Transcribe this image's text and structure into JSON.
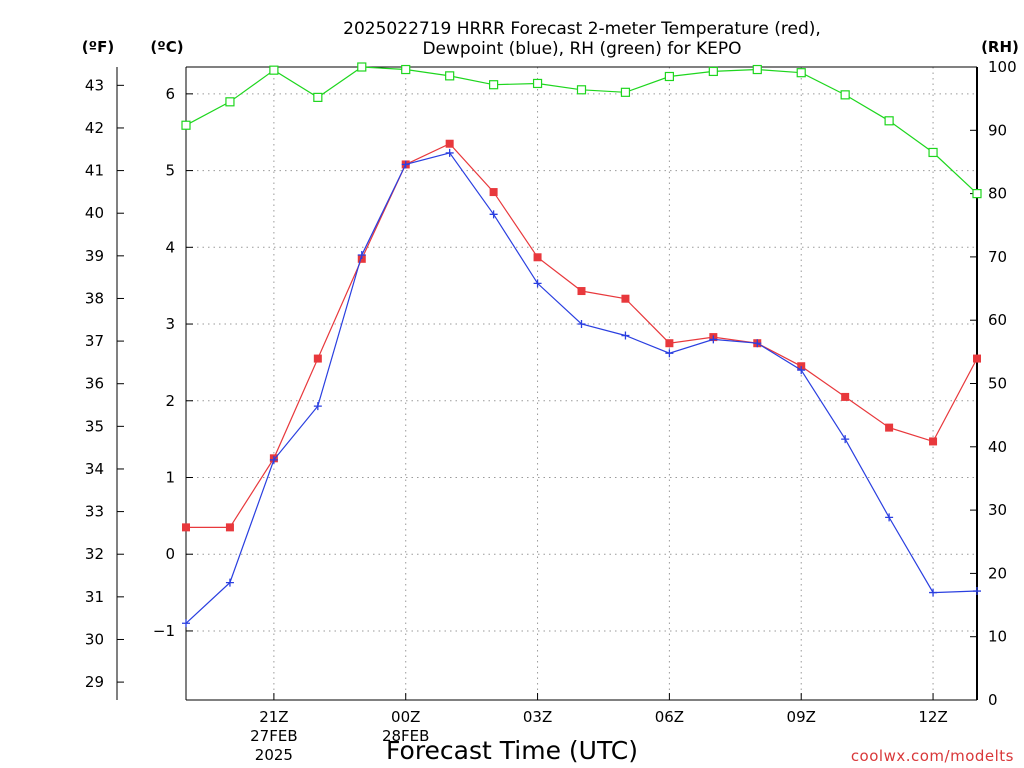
{
  "chart_data": {
    "type": "line",
    "title_line1": "2025022719 HRRR Forecast 2-meter Temperature (red),",
    "title_line2": "Dewpoint (blue), RH (green) for KEPO",
    "xlabel": "Forecast Time (UTC)",
    "credit": "coolwx.com/modelts",
    "left_outer_unit": "(ºF)",
    "left_inner_unit": "(ºC)",
    "right_unit": "(RH)",
    "x_hours": [
      19,
      20,
      21,
      22,
      23,
      24,
      25,
      26,
      27,
      28,
      29,
      30,
      31,
      32,
      33,
      34,
      35,
      36,
      37
    ],
    "x_range": [
      19,
      37
    ],
    "x_ticks": [
      {
        "hour": 21,
        "label": "21Z",
        "sub1": "27FEB",
        "sub2": "2025"
      },
      {
        "hour": 24,
        "label": "00Z",
        "sub1": "28FEB",
        "sub2": ""
      },
      {
        "hour": 27,
        "label": "03Z",
        "sub1": "",
        "sub2": ""
      },
      {
        "hour": 30,
        "label": "06Z",
        "sub1": "",
        "sub2": ""
      },
      {
        "hour": 33,
        "label": "09Z",
        "sub1": "",
        "sub2": ""
      },
      {
        "hour": 36,
        "label": "12Z",
        "sub1": "",
        "sub2": ""
      }
    ],
    "celsius_range": [
      -1.9,
      6.35
    ],
    "celsius_ticks": [
      "-1",
      "0",
      "1",
      "2",
      "3",
      "4",
      "5",
      "6"
    ],
    "fahrenheit_ticks": [
      "29",
      "30",
      "31",
      "32",
      "33",
      "34",
      "35",
      "36",
      "37",
      "38",
      "39",
      "40",
      "41",
      "42",
      "43"
    ],
    "rh_range": [
      0,
      100
    ],
    "rh_ticks": [
      "0",
      "10",
      "20",
      "30",
      "40",
      "50",
      "60",
      "70",
      "80",
      "90",
      "100"
    ],
    "grid": true,
    "series": [
      {
        "name": "Temperature",
        "unit": "C",
        "color": "#e8383c",
        "marker": "filled-square",
        "values": [
          0.35,
          0.35,
          1.25,
          2.55,
          3.85,
          5.08,
          5.35,
          4.72,
          3.87,
          3.43,
          3.33,
          2.75,
          2.83,
          2.75,
          2.45,
          2.05,
          1.65,
          1.47,
          2.55
        ]
      },
      {
        "name": "Dewpoint",
        "unit": "C",
        "color": "#2a3fe0",
        "marker": "plus",
        "values": [
          -0.9,
          -0.37,
          1.23,
          1.93,
          3.9,
          5.08,
          5.23,
          4.43,
          3.53,
          3.0,
          2.85,
          2.62,
          2.8,
          2.75,
          2.4,
          1.5,
          0.48,
          -0.5,
          -0.48
        ]
      },
      {
        "name": "RH",
        "unit": "%",
        "color": "#1ed61e",
        "marker": "open-square",
        "values": [
          90.8,
          94.5,
          99.5,
          95.2,
          100,
          99.6,
          98.6,
          97.2,
          97.4,
          96.4,
          96.0,
          98.5,
          99.3,
          99.6,
          99.1,
          95.6,
          91.5,
          86.5,
          80.0
        ]
      }
    ]
  }
}
